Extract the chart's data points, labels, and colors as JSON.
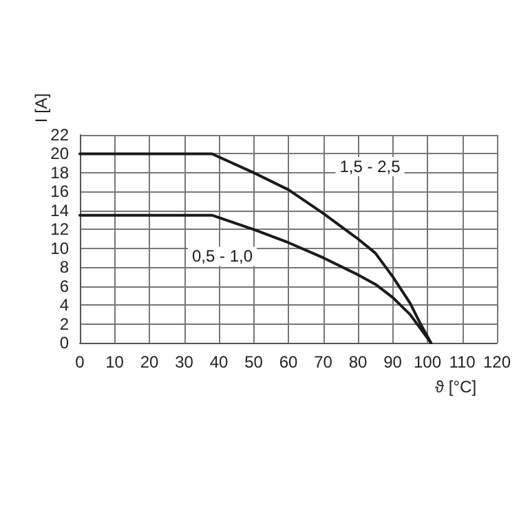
{
  "chart_data": {
    "type": "line",
    "xlabel": "ϑ [°C]",
    "ylabel": "I [A]",
    "xlim": [
      0,
      120
    ],
    "xticks": [
      0,
      10,
      20,
      30,
      40,
      50,
      60,
      70,
      80,
      90,
      100,
      110,
      120
    ],
    "ylim": [
      0,
      22
    ],
    "yticks": [
      0,
      2,
      4,
      6,
      8,
      10,
      12,
      14,
      16,
      18,
      20,
      22
    ],
    "grid": true,
    "legend": false,
    "marker": "none",
    "line_style": "solid",
    "series": [
      {
        "name": "1,5 - 2,5",
        "color": "#1a1a1a",
        "x": [
          0,
          38,
          50,
          60,
          70,
          80,
          85,
          90,
          95,
          98,
          101
        ],
        "values": [
          20,
          20,
          18,
          16.2,
          13.7,
          11,
          9.5,
          7,
          4.2,
          2,
          0
        ]
      },
      {
        "name": "0,5 - 1,0",
        "color": "#1a1a1a",
        "x": [
          0,
          38,
          50,
          60,
          70,
          80,
          85,
          90,
          95,
          98,
          101
        ],
        "values": [
          13.5,
          13.5,
          12,
          10.6,
          9,
          7.2,
          6.2,
          4.8,
          3,
          1.5,
          0
        ]
      }
    ]
  }
}
